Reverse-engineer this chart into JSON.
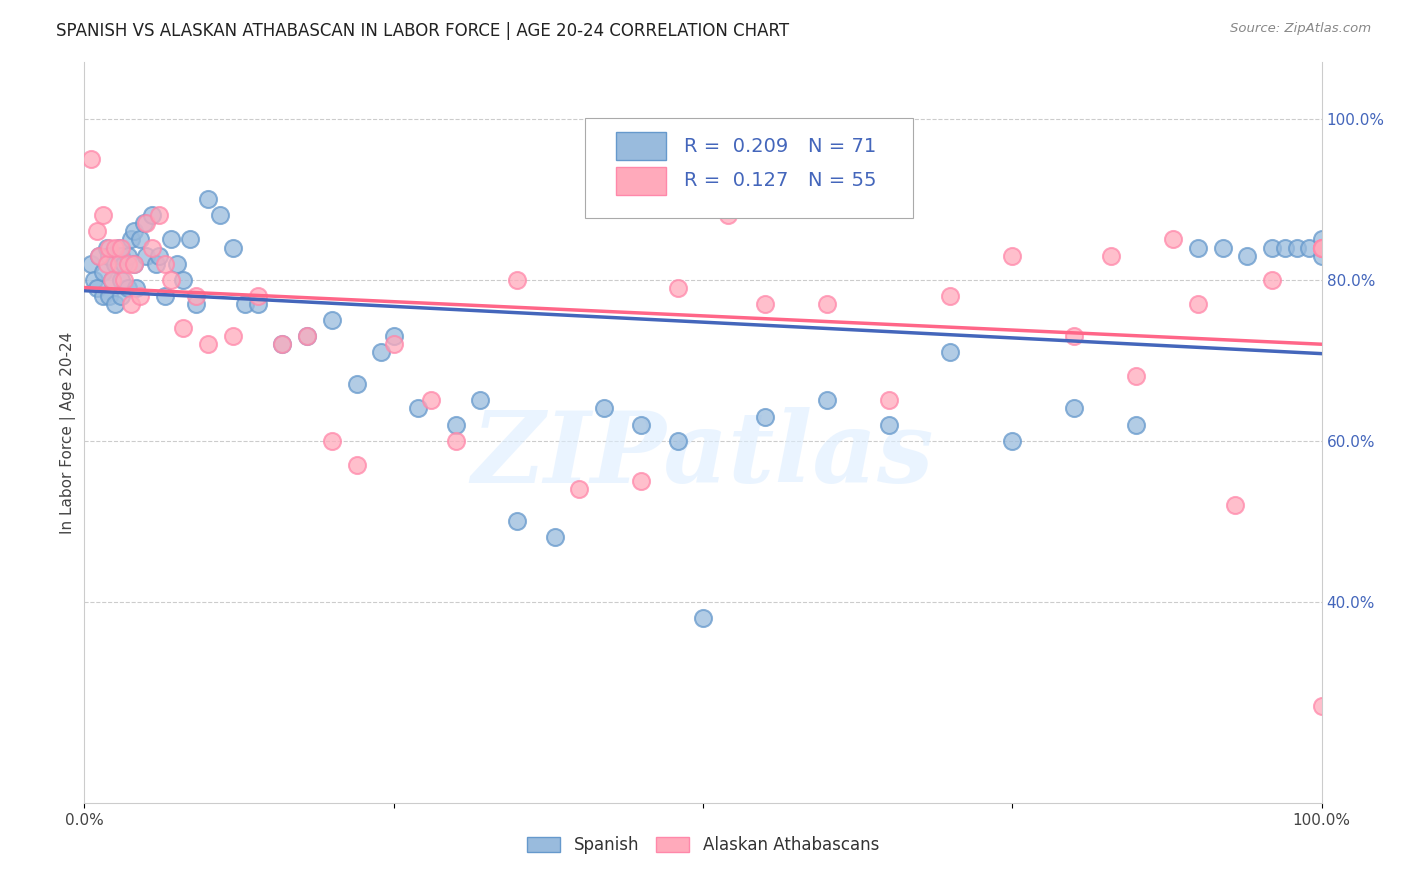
{
  "title": "SPANISH VS ALASKAN ATHABASCAN IN LABOR FORCE | AGE 20-24 CORRELATION CHART",
  "source": "Source: ZipAtlas.com",
  "ylabel": "In Labor Force | Age 20-24",
  "right_ytick_labels": [
    "100.0%",
    "80.0%",
    "60.0%",
    "40.0%"
  ],
  "right_ytick_values": [
    1.0,
    0.8,
    0.6,
    0.4
  ],
  "legend_label1": "Spanish",
  "legend_label2": "Alaskan Athabascans",
  "R1": 0.209,
  "N1": 71,
  "R2": 0.127,
  "N2": 55,
  "color_blue": "#99BBDD",
  "color_blue_edge": "#6699CC",
  "color_blue_line": "#4466BB",
  "color_pink": "#FFAABB",
  "color_pink_edge": "#FF88AA",
  "color_pink_line": "#FF6688",
  "watermark_text": "ZIPatlas",
  "blue_x": [
    0.005,
    0.008,
    0.01,
    0.012,
    0.015,
    0.015,
    0.018,
    0.02,
    0.02,
    0.022,
    0.025,
    0.025,
    0.028,
    0.03,
    0.03,
    0.03,
    0.032,
    0.035,
    0.035,
    0.038,
    0.04,
    0.04,
    0.042,
    0.045,
    0.048,
    0.05,
    0.055,
    0.058,
    0.06,
    0.065,
    0.07,
    0.075,
    0.08,
    0.085,
    0.09,
    0.1,
    0.11,
    0.12,
    0.13,
    0.14,
    0.16,
    0.18,
    0.2,
    0.22,
    0.24,
    0.25,
    0.27,
    0.3,
    0.32,
    0.35,
    0.38,
    0.42,
    0.45,
    0.48,
    0.5,
    0.55,
    0.6,
    0.65,
    0.7,
    0.75,
    0.8,
    0.85,
    0.9,
    0.92,
    0.94,
    0.96,
    0.97,
    0.98,
    0.99,
    1.0,
    1.0
  ],
  "blue_y": [
    0.82,
    0.8,
    0.79,
    0.83,
    0.81,
    0.78,
    0.84,
    0.83,
    0.78,
    0.8,
    0.82,
    0.77,
    0.84,
    0.83,
    0.8,
    0.78,
    0.82,
    0.83,
    0.79,
    0.85,
    0.86,
    0.82,
    0.79,
    0.85,
    0.87,
    0.83,
    0.88,
    0.82,
    0.83,
    0.78,
    0.85,
    0.82,
    0.8,
    0.85,
    0.77,
    0.9,
    0.88,
    0.84,
    0.77,
    0.77,
    0.72,
    0.73,
    0.75,
    0.67,
    0.71,
    0.73,
    0.64,
    0.62,
    0.65,
    0.5,
    0.48,
    0.64,
    0.62,
    0.6,
    0.38,
    0.63,
    0.65,
    0.62,
    0.71,
    0.6,
    0.64,
    0.62,
    0.84,
    0.84,
    0.83,
    0.84,
    0.84,
    0.84,
    0.84,
    0.85,
    0.83
  ],
  "pink_x": [
    0.005,
    0.01,
    0.012,
    0.015,
    0.018,
    0.02,
    0.022,
    0.025,
    0.028,
    0.03,
    0.032,
    0.035,
    0.038,
    0.04,
    0.045,
    0.05,
    0.055,
    0.06,
    0.065,
    0.07,
    0.08,
    0.09,
    0.1,
    0.12,
    0.14,
    0.16,
    0.18,
    0.2,
    0.22,
    0.25,
    0.28,
    0.3,
    0.35,
    0.4,
    0.45,
    0.48,
    0.52,
    0.55,
    0.6,
    0.65,
    0.7,
    0.75,
    0.8,
    0.83,
    0.85,
    0.88,
    0.9,
    0.93,
    0.96,
    1.0,
    1.0,
    1.0,
    1.0,
    1.0,
    1.0
  ],
  "pink_y": [
    0.95,
    0.86,
    0.83,
    0.88,
    0.82,
    0.84,
    0.8,
    0.84,
    0.82,
    0.84,
    0.8,
    0.82,
    0.77,
    0.82,
    0.78,
    0.87,
    0.84,
    0.88,
    0.82,
    0.8,
    0.74,
    0.78,
    0.72,
    0.73,
    0.78,
    0.72,
    0.73,
    0.6,
    0.57,
    0.72,
    0.65,
    0.6,
    0.8,
    0.54,
    0.55,
    0.79,
    0.88,
    0.77,
    0.77,
    0.65,
    0.78,
    0.83,
    0.73,
    0.83,
    0.68,
    0.85,
    0.77,
    0.52,
    0.8,
    0.84,
    0.84,
    0.84,
    0.84,
    0.84,
    0.27
  ]
}
